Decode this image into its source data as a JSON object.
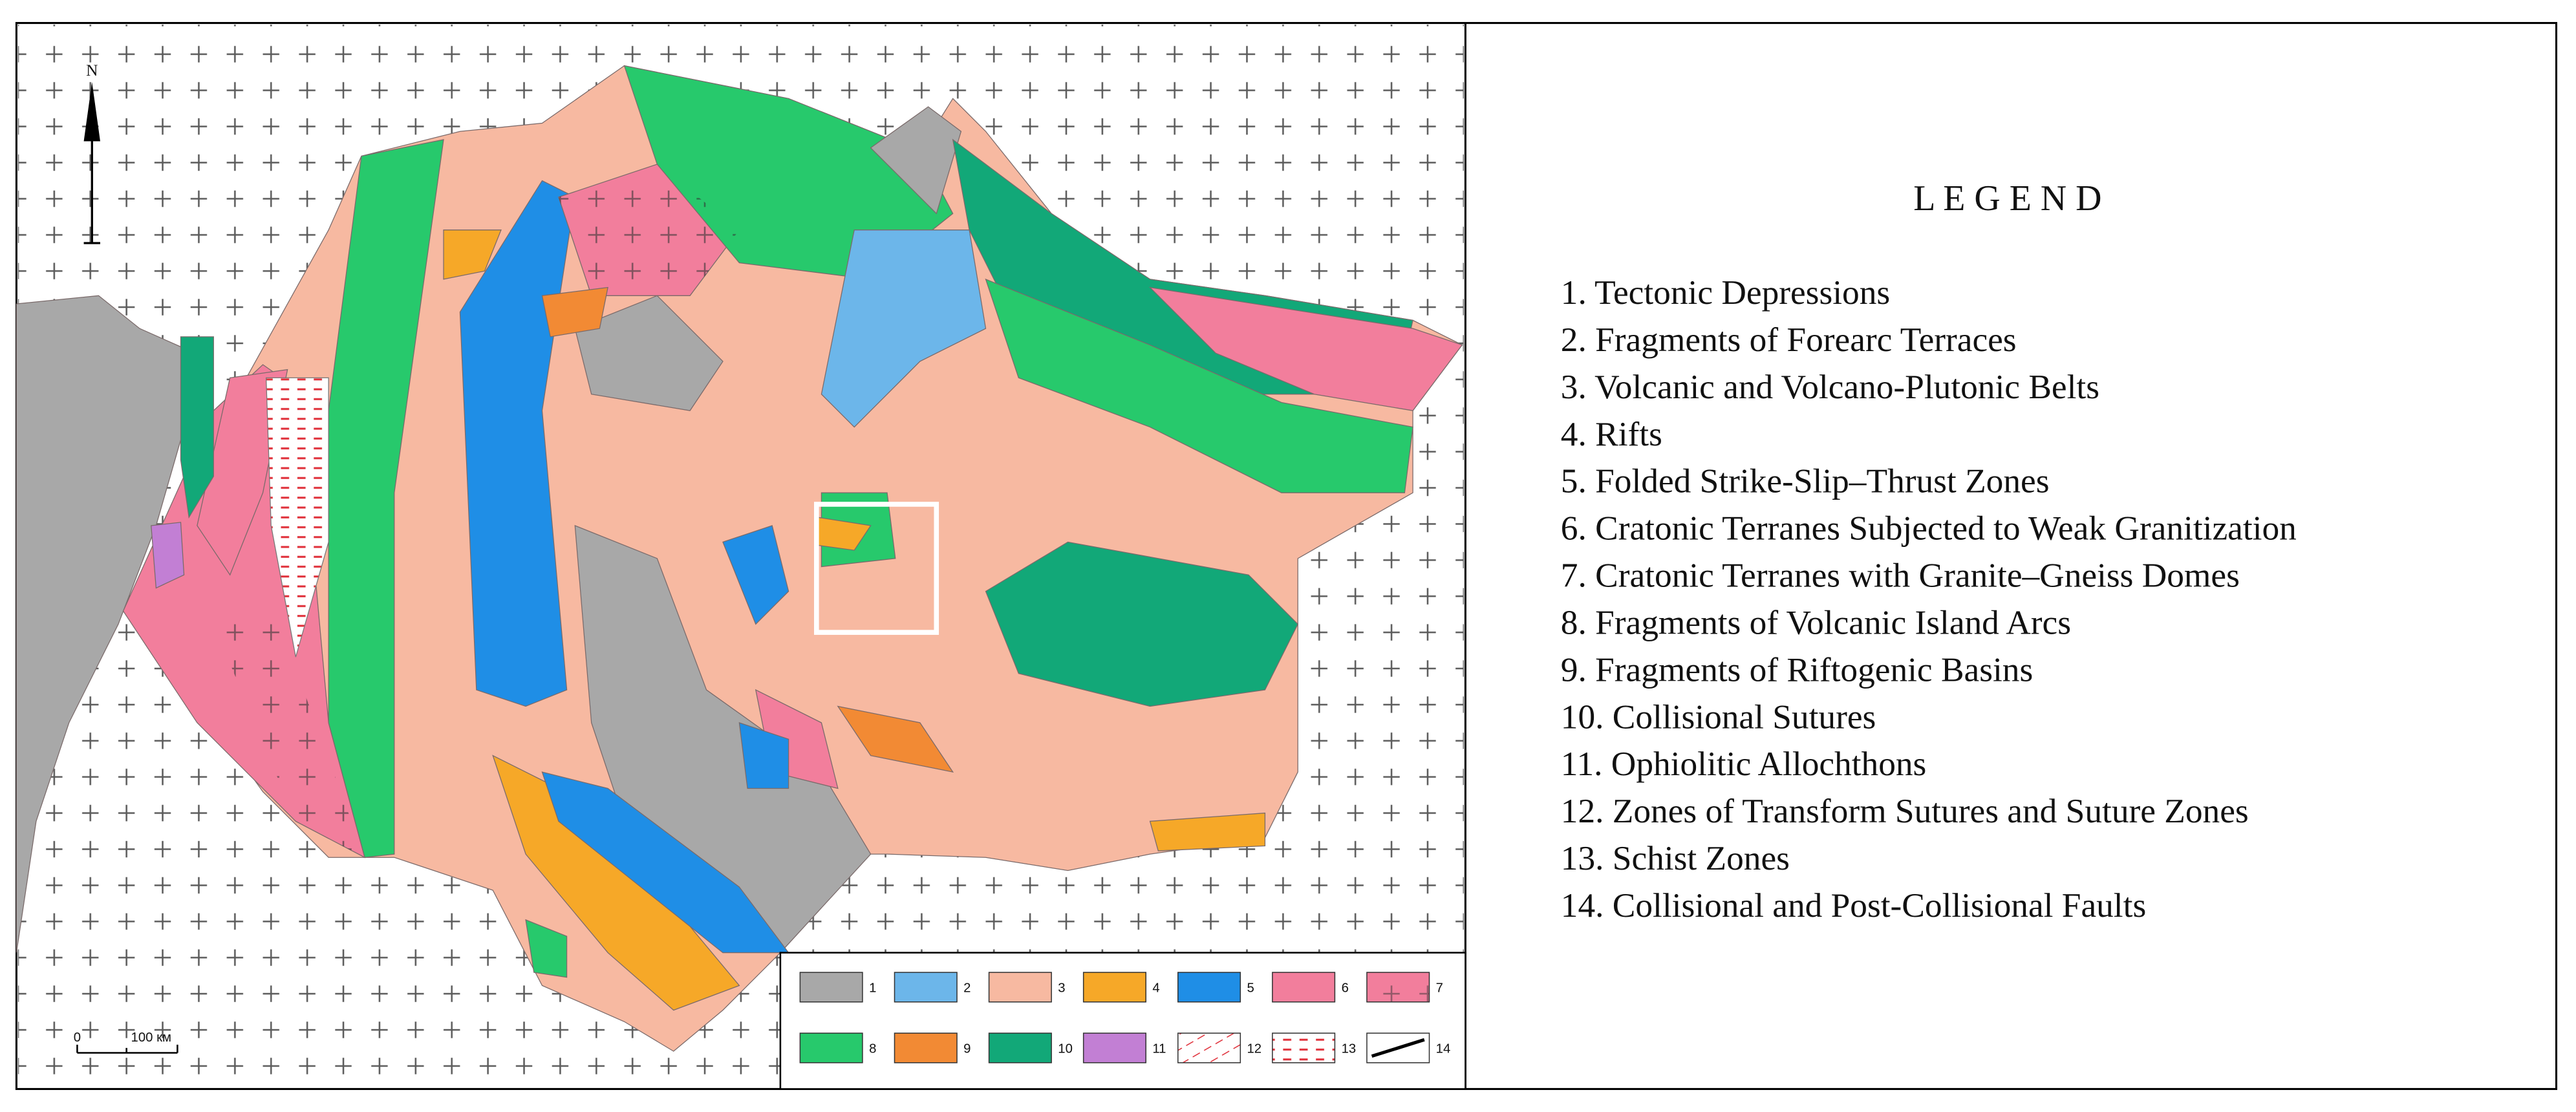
{
  "map": {
    "north_label": "N",
    "scale": {
      "start": "0",
      "end": "100 км"
    },
    "legend_keys": [
      "1",
      "2",
      "3",
      "4",
      "5",
      "6",
      "7",
      "8",
      "9",
      "10",
      "11",
      "12",
      "13",
      "14"
    ]
  },
  "legend": {
    "title": "L E G E N D",
    "items": [
      "1.  Tectonic Depressions",
      "2.  Fragments of Forearc Terraces",
      "3.  Volcanic and Volcano-Plutonic Belts",
      "4.  Rifts",
      "5.  Folded Strike-Slip–Thrust Zones",
      "6.  Cratonic Terranes Subjected to Weak Granitization",
      "7.  Cratonic Terranes with Granite–Gneiss Domes",
      "8.  Fragments of Volcanic Island Arcs",
      "9.  Fragments of Riftogenic Basins",
      "10.  Collisional Sutures",
      "11.  Ophiolitic Allochthons",
      "12.  Zones of Transform Sutures and Suture Zones",
      "13.  Schist Zones",
      "14.  Collisional and Post-Collisional Faults"
    ]
  }
}
